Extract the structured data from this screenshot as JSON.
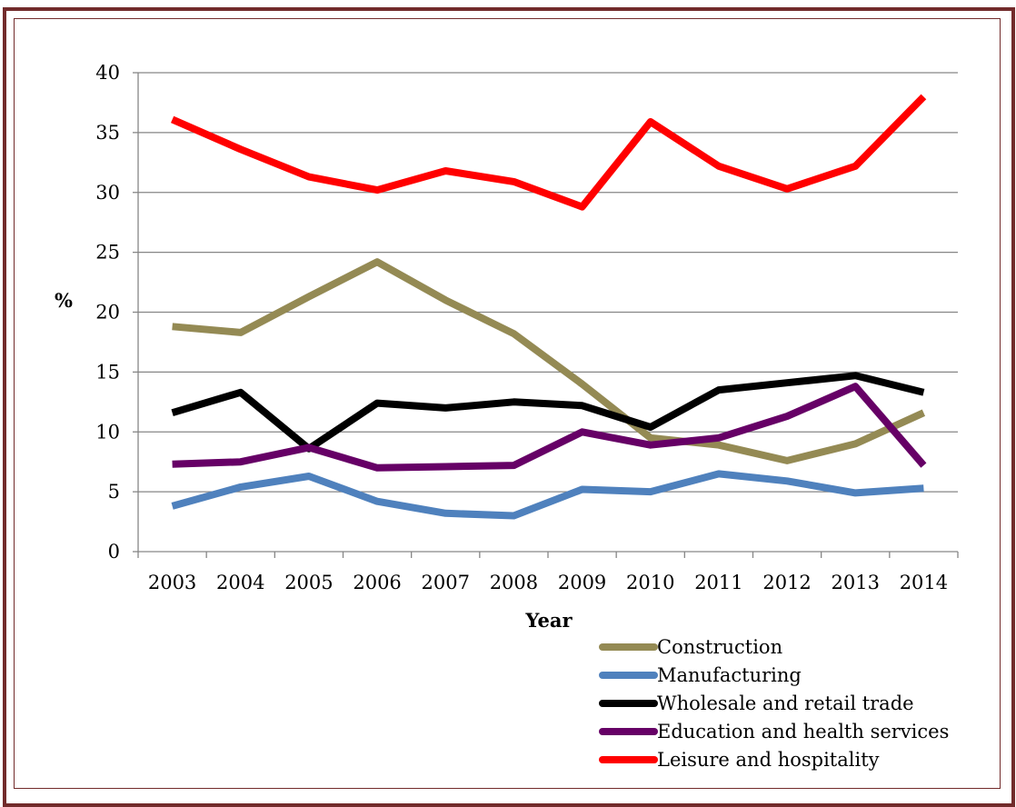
{
  "chart_data": {
    "type": "line",
    "title": "",
    "xlabel": "Year",
    "ylabel": "%",
    "ylim": [
      0,
      40
    ],
    "yticks": [
      0,
      5,
      10,
      15,
      20,
      25,
      30,
      35,
      40
    ],
    "categories": [
      "2003",
      "2004",
      "2005",
      "2006",
      "2007",
      "2008",
      "2009",
      "2010",
      "2011",
      "2012",
      "2013",
      "2014"
    ],
    "grid": true,
    "legend_position": "bottom-right",
    "series": [
      {
        "name": "Construction",
        "color": "#948a54",
        "values": [
          18.8,
          18.3,
          21.3,
          24.2,
          21.0,
          18.2,
          14.0,
          9.5,
          8.9,
          7.6,
          9.0,
          11.6
        ]
      },
      {
        "name": "Manufacturing",
        "color": "#4f81bd",
        "values": [
          3.8,
          5.4,
          6.3,
          4.2,
          3.2,
          3.0,
          5.2,
          5.0,
          6.5,
          5.9,
          4.9,
          5.3
        ]
      },
      {
        "name": "Wholesale and retail trade",
        "color": "#000000",
        "values": [
          11.6,
          13.3,
          8.6,
          12.4,
          12.0,
          12.5,
          12.2,
          10.4,
          13.5,
          14.1,
          14.7,
          13.3
        ]
      },
      {
        "name": "Education and health services",
        "color": "#660066",
        "values": [
          7.3,
          7.5,
          8.7,
          7.0,
          7.1,
          7.2,
          10.0,
          8.9,
          9.5,
          11.3,
          13.8,
          7.2
        ]
      },
      {
        "name": "Leisure and hospitality",
        "color": "#ff0000",
        "values": [
          36.1,
          33.6,
          31.3,
          30.2,
          31.8,
          30.9,
          28.8,
          35.9,
          32.2,
          30.3,
          32.2,
          38.0
        ]
      }
    ]
  }
}
